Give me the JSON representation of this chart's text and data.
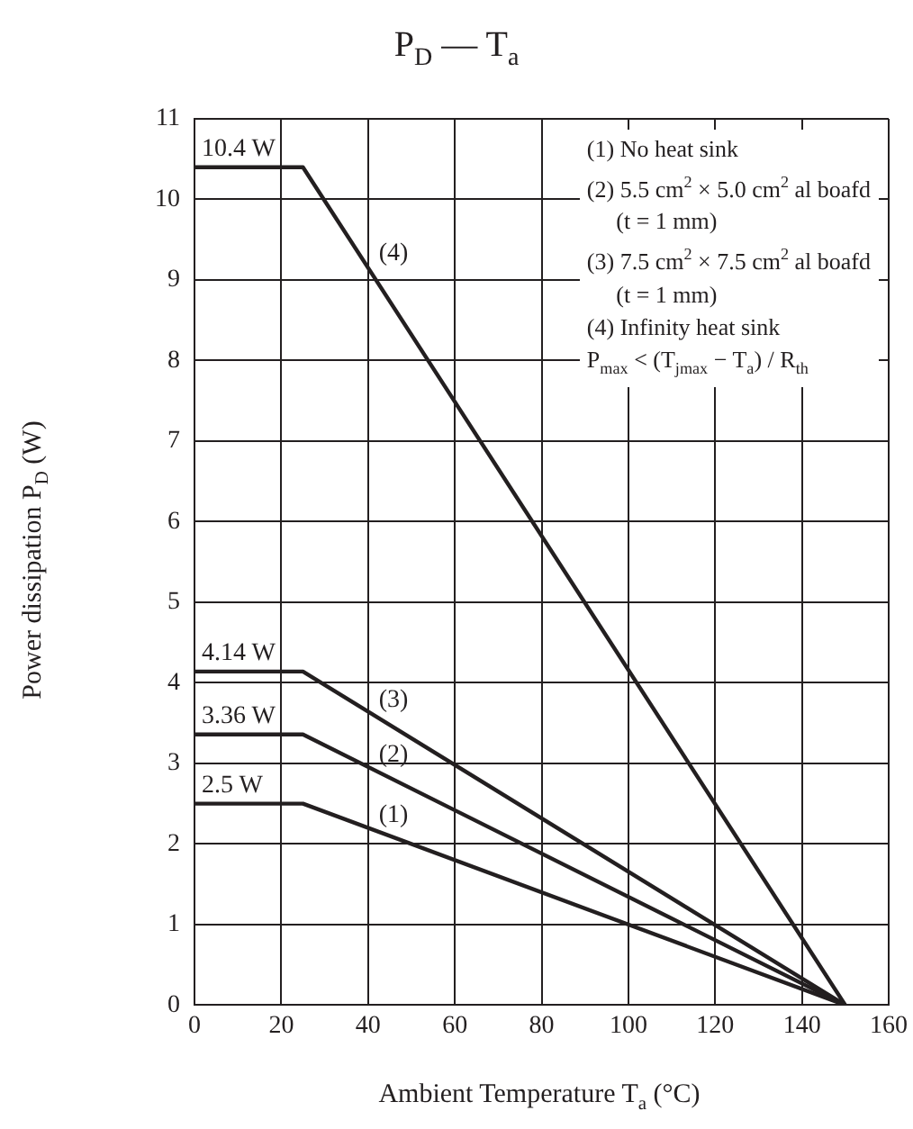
{
  "chart_data": {
    "type": "line",
    "title": "P$_{D}$ — T$_{a}$",
    "xlabel": "Ambient Temperature  T$_{a}$ (°C)",
    "ylabel": "Power dissipation  P$_{D}$ (W)",
    "x": [
      0,
      25,
      150
    ],
    "series": [
      {
        "name": "(1)",
        "color": "#231f20",
        "values": [
          2.5,
          2.5,
          0
        ],
        "value_labels": [
          "2.5 W",
          null,
          null
        ]
      },
      {
        "name": "(2)",
        "color": "#231f20",
        "values": [
          3.36,
          3.36,
          0
        ],
        "value_labels": [
          "3.36 W",
          null,
          null
        ]
      },
      {
        "name": "(3)",
        "color": "#231f20",
        "values": [
          4.14,
          4.14,
          0
        ],
        "value_labels": [
          "4.14 W",
          null,
          null
        ]
      },
      {
        "name": "(4)",
        "color": "#231f20",
        "values": [
          10.4,
          10.4,
          0
        ],
        "value_labels": [
          "10.4 W",
          null,
          null
        ]
      }
    ],
    "xlim": [
      0,
      160
    ],
    "xticks": [
      0,
      20,
      40,
      60,
      80,
      100,
      120,
      140,
      160
    ],
    "ylim": [
      0,
      11
    ],
    "yticks": [
      0,
      1,
      2,
      3,
      4,
      5,
      6,
      7,
      8,
      9,
      10,
      11
    ],
    "grid": true,
    "legend": false,
    "marker": "none",
    "line_style": "solid",
    "annotations": [
      "(1) No heat sink",
      "(2) 5.5 cm$^{2}$ × 5.0 cm$^{2}$ al boafd",
      "     (t = 1 mm)",
      "(3) 7.5 cm$^{2}$ × 7.5 cm$^{2}$ al boafd",
      "     (t = 1 mm)",
      "(4) Infinity heat sink",
      "P$_{max}$ < (T$_{jmax}$ − T$_{a}$) / R$_{th}$"
    ]
  }
}
